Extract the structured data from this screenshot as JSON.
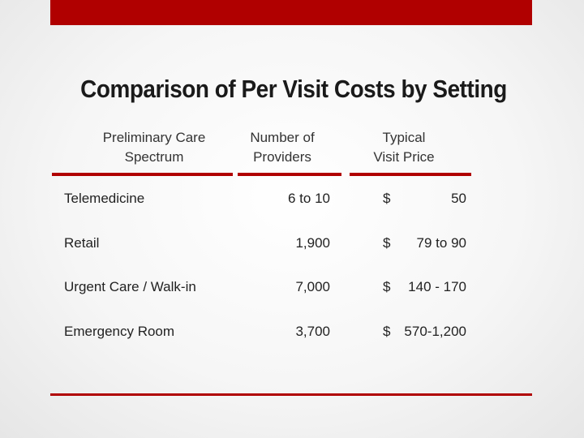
{
  "slide": {
    "title": "Comparison of Per Visit Costs by Setting",
    "accent_color": "#b00000"
  },
  "table": {
    "headers": [
      {
        "line1": "Preliminary Care",
        "line2": "Spectrum"
      },
      {
        "line1": "Number of",
        "line2": "Providers"
      },
      {
        "line1": "Typical",
        "line2": "Visit Price"
      }
    ],
    "rows": [
      {
        "setting": "Telemedicine",
        "providers": "6 to 10",
        "dollar": "$",
        "price": "50"
      },
      {
        "setting": "Retail",
        "providers": "1,900",
        "dollar": "$",
        "price": "79 to 90"
      },
      {
        "setting": "Urgent Care / Walk-in",
        "providers": "7,000",
        "dollar": "$",
        "price": "140 - 170"
      },
      {
        "setting": "Emergency Room",
        "providers": "3,700",
        "dollar": "$",
        "price": "570-1,200"
      }
    ]
  }
}
